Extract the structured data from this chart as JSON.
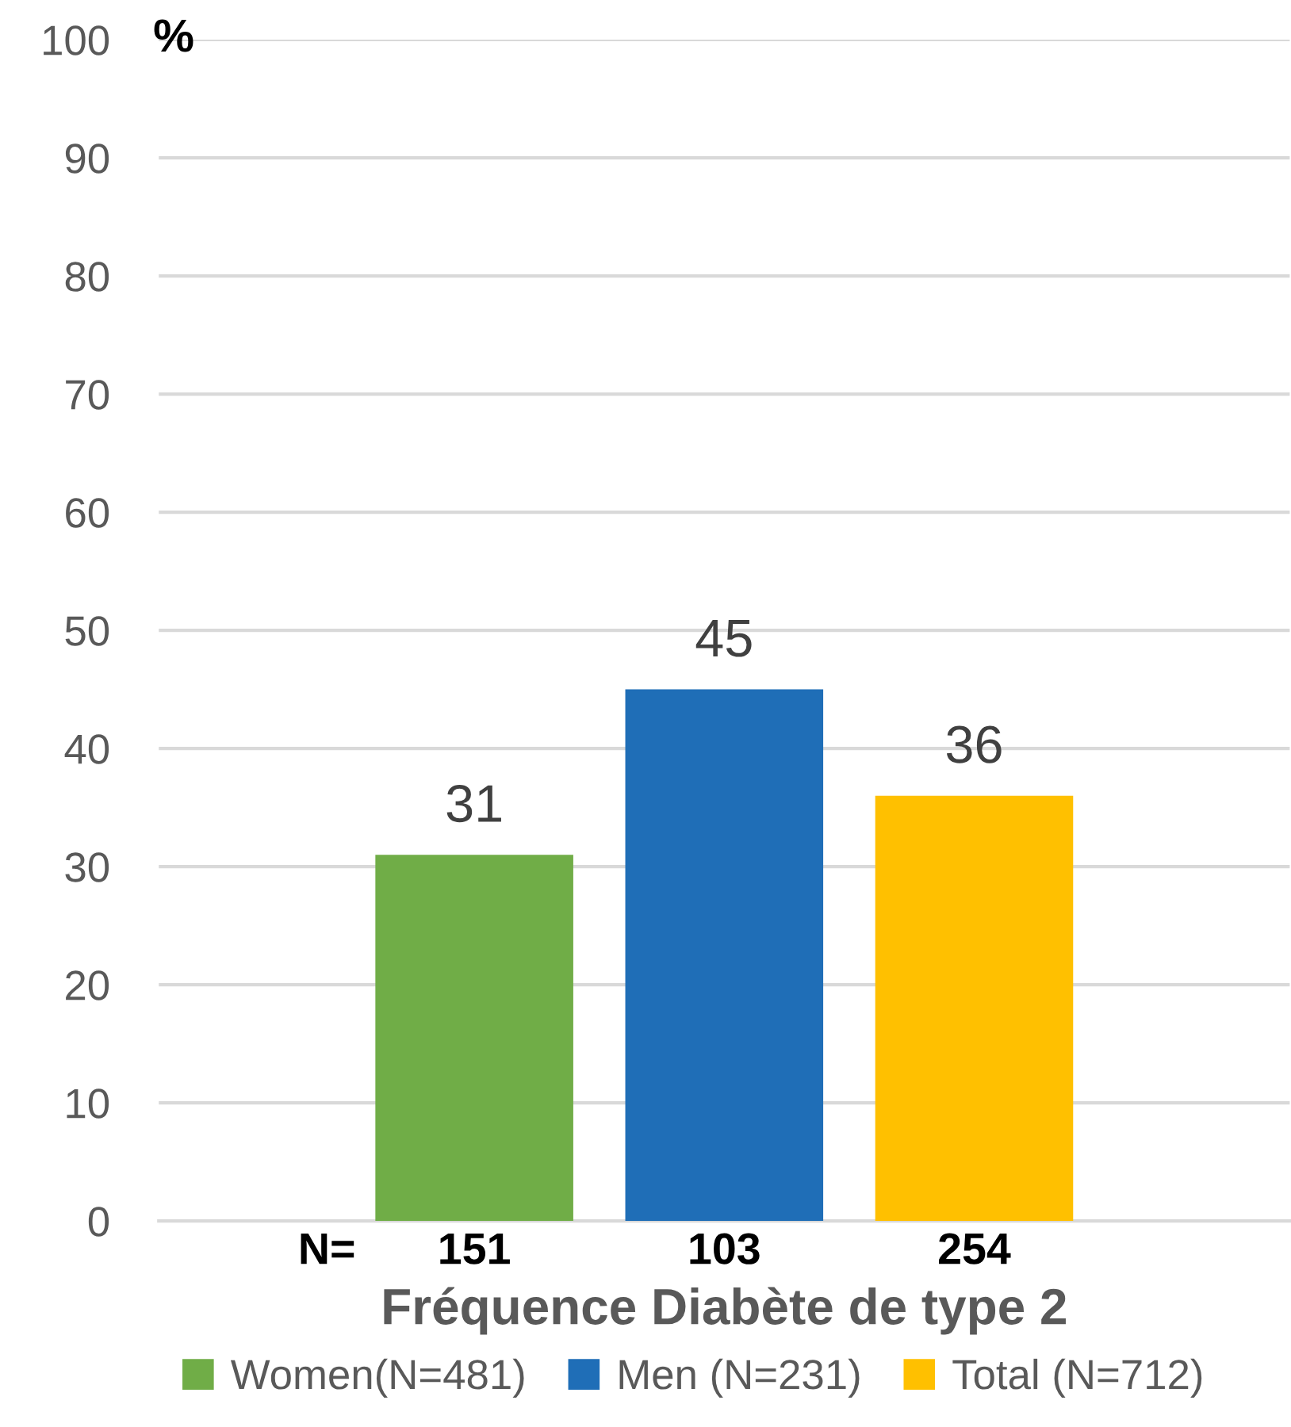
{
  "chart_data": {
    "type": "bar",
    "categories": [
      "Fréquence Diabète de type 2"
    ],
    "ylabel": "%",
    "series": [
      {
        "name": "Women(N=481)",
        "color": "#70ad47",
        "values": [
          31
        ]
      },
      {
        "name": "Men (N=231)",
        "color": "#1f6eb7",
        "values": [
          45
        ]
      },
      {
        "name": "Total (N=712)",
        "color": "#ffc000",
        "values": [
          36
        ]
      }
    ],
    "ylim": [
      0,
      100
    ],
    "yticks": [
      0,
      10,
      20,
      30,
      40,
      50,
      60,
      70,
      80,
      90,
      100
    ],
    "grid": "y",
    "legend": "bottom",
    "data_labels": true,
    "annotations": [
      "N=",
      "151",
      "103",
      "254"
    ]
  }
}
